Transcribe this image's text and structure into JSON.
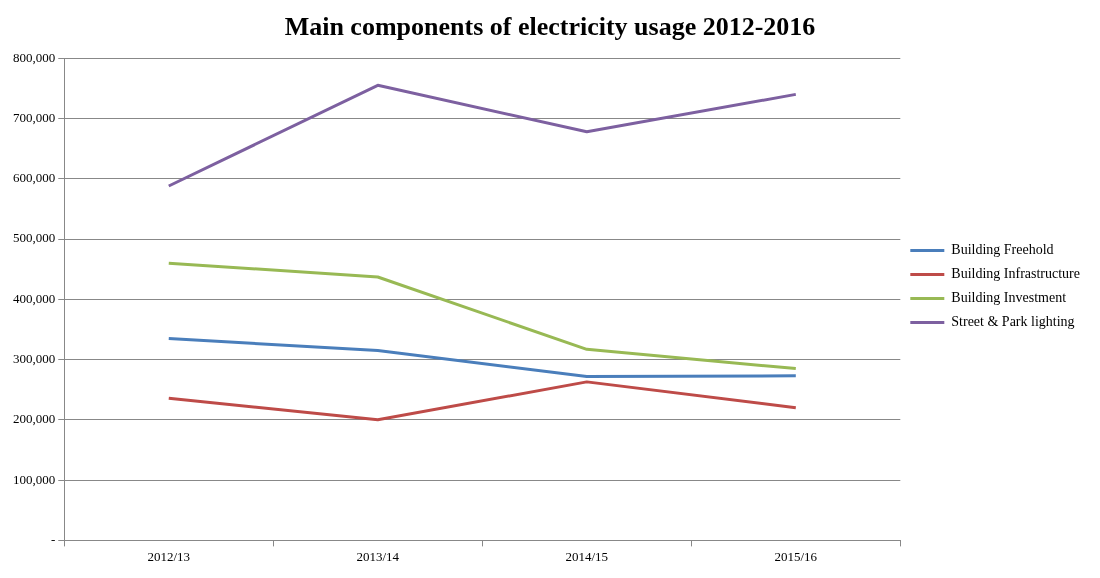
{
  "chart_data": {
    "type": "line",
    "title": "Main components of electricity usage 2012-2016",
    "categories": [
      "2012/13",
      "2013/14",
      "2014/15",
      "2015/16"
    ],
    "series": [
      {
        "name": "Building Freehold",
        "color": "#4a7ebb",
        "values": [
          335000,
          315000,
          272000,
          273000
        ]
      },
      {
        "name": "Building Infrastructure",
        "color": "#be4b48",
        "values": [
          236000,
          200000,
          263000,
          220000
        ]
      },
      {
        "name": "Building Investment",
        "color": "#98b954",
        "values": [
          460000,
          437000,
          317000,
          285000
        ]
      },
      {
        "name": "Street & Park lighting",
        "color": "#7d60a0",
        "values": [
          588000,
          755000,
          678000,
          740000
        ]
      }
    ],
    "ylim": [
      0,
      800000
    ],
    "yticks": [
      {
        "value": 0,
        "label": "-"
      },
      {
        "value": 100000,
        "label": "100,000"
      },
      {
        "value": 200000,
        "label": "200,000"
      },
      {
        "value": 300000,
        "label": "300,000"
      },
      {
        "value": 400000,
        "label": "400,000"
      },
      {
        "value": 500000,
        "label": "500,000"
      },
      {
        "value": 600000,
        "label": "600,000"
      },
      {
        "value": 700000,
        "label": "700,000"
      },
      {
        "value": 800000,
        "label": "800,000"
      }
    ],
    "grid": "y",
    "legend": "right",
    "marker": "none",
    "line_style": "solid"
  }
}
